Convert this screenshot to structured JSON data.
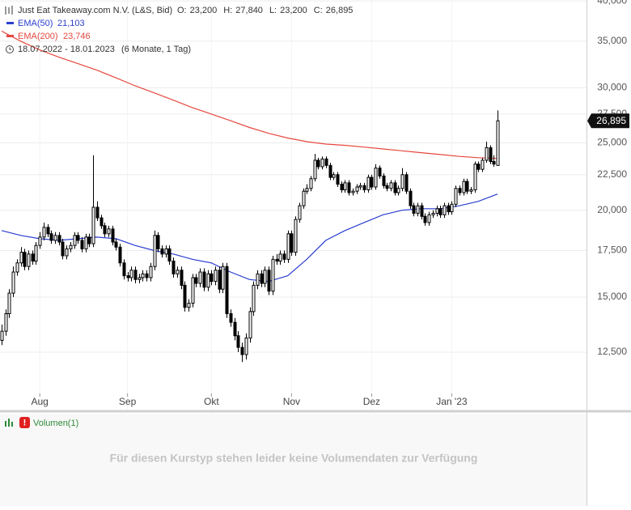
{
  "chart_data": {
    "type": "candlestick",
    "title": "Just Eat Takeaway.com N.V. (L&S, Bid)",
    "ohlc_header": [
      {
        "name": "O:",
        "value": 23200,
        "label": "23,200"
      },
      {
        "name": "H:",
        "value": 27840,
        "label": "27,840"
      },
      {
        "name": "L:",
        "value": 23200,
        "label": "23,200"
      },
      {
        "name": "C:",
        "value": 26895,
        "label": "26,895"
      }
    ],
    "range": "18.07.2022 - 18.01.2023",
    "range_note": "(6 Monate, 1 Tag)",
    "log_scale": true,
    "grid": true,
    "ylim": [
      10280,
      40120
    ],
    "yticks": [
      {
        "value": 12500,
        "label": "12,500"
      },
      {
        "value": 15000,
        "label": "15,000"
      },
      {
        "value": 17500,
        "label": "17,500"
      },
      {
        "value": 20000,
        "label": "20,000"
      },
      {
        "value": 22500,
        "label": "22,500"
      },
      {
        "value": 25000,
        "label": "25,000"
      },
      {
        "value": 27500,
        "label": "27,500"
      },
      {
        "value": 30000,
        "label": "30,000"
      },
      {
        "value": 35000,
        "label": "35,000"
      },
      {
        "value": 40000,
        "label": "40,000"
      }
    ],
    "xticks": [
      {
        "value": 10,
        "label": "Aug"
      },
      {
        "value": 33,
        "label": "Sep"
      },
      {
        "value": 55,
        "label": "Okt"
      },
      {
        "value": 76,
        "label": "Nov"
      },
      {
        "value": 97,
        "label": "Dez"
      },
      {
        "value": 118,
        "label": "Jan '23"
      }
    ],
    "current_price": {
      "value": 26895,
      "label": "26,895"
    },
    "up_color": "#ffffff",
    "down_color": "#000000",
    "candles": [
      [
        13000,
        13700,
        12800,
        13400
      ],
      [
        13400,
        14400,
        13200,
        14200
      ],
      [
        14200,
        15400,
        14000,
        15200
      ],
      [
        15200,
        16600,
        15000,
        16300
      ],
      [
        16300,
        17000,
        16100,
        16800
      ],
      [
        16800,
        17700,
        16600,
        17400
      ],
      [
        17400,
        17600,
        16400,
        16600
      ],
      [
        16600,
        17500,
        16400,
        17300
      ],
      [
        17300,
        17500,
        16700,
        16900
      ],
      [
        16900,
        18000,
        16700,
        17800
      ],
      [
        17800,
        18600,
        17600,
        18300
      ],
      [
        18300,
        19200,
        18100,
        18900
      ],
      [
        18900,
        19100,
        18300,
        18500
      ],
      [
        18500,
        18700,
        17900,
        18100
      ],
      [
        18100,
        18600,
        17900,
        18400
      ],
      [
        18400,
        18600,
        17800,
        18000
      ],
      [
        18000,
        18200,
        17000,
        17200
      ],
      [
        17200,
        17800,
        17000,
        17600
      ],
      [
        17600,
        18000,
        17400,
        17800
      ],
      [
        17800,
        18600,
        17600,
        18400
      ],
      [
        18400,
        18600,
        17900,
        18100
      ],
      [
        18100,
        18300,
        17400,
        17600
      ],
      [
        17600,
        18500,
        17400,
        18300
      ],
      [
        18300,
        18500,
        17700,
        17900
      ],
      [
        17900,
        24000,
        17700,
        20200
      ],
      [
        20200,
        20600,
        19300,
        19500
      ],
      [
        19500,
        19700,
        18800,
        19000
      ],
      [
        19000,
        19200,
        18300,
        18500
      ],
      [
        18500,
        19000,
        18300,
        18800
      ],
      [
        18800,
        19000,
        17800,
        18000
      ],
      [
        18000,
        18200,
        17500,
        17700
      ],
      [
        17700,
        17900,
        16600,
        16800
      ],
      [
        16800,
        17000,
        15900,
        16100
      ],
      [
        16100,
        16300,
        15800,
        16000
      ],
      [
        16000,
        16600,
        15800,
        16400
      ],
      [
        16400,
        16600,
        15700,
        15900
      ],
      [
        15900,
        16200,
        15700,
        16000
      ],
      [
        16000,
        16400,
        15800,
        16200
      ],
      [
        16200,
        16400,
        15800,
        16000
      ],
      [
        16000,
        16800,
        15800,
        16600
      ],
      [
        16600,
        18700,
        16400,
        18400
      ],
      [
        18400,
        18600,
        17400,
        17600
      ],
      [
        17600,
        17800,
        17100,
        17300
      ],
      [
        17300,
        17800,
        17100,
        17600
      ],
      [
        17600,
        17800,
        16700,
        16900
      ],
      [
        16900,
        17100,
        16000,
        16200
      ],
      [
        16200,
        16600,
        16000,
        16400
      ],
      [
        16400,
        16600,
        15400,
        15600
      ],
      [
        15600,
        15800,
        14300,
        14500
      ],
      [
        14500,
        14900,
        14300,
        14700
      ],
      [
        14700,
        16200,
        14500,
        16000
      ],
      [
        16000,
        16200,
        15500,
        15700
      ],
      [
        15700,
        16500,
        15500,
        16300
      ],
      [
        16300,
        16500,
        15300,
        15500
      ],
      [
        15500,
        16400,
        15300,
        16200
      ],
      [
        16200,
        16400,
        15600,
        15800
      ],
      [
        15800,
        16600,
        15600,
        16400
      ],
      [
        16400,
        16600,
        15200,
        15400
      ],
      [
        15400,
        16800,
        15200,
        16600
      ],
      [
        16600,
        16800,
        14000,
        14200
      ],
      [
        14200,
        14400,
        13600,
        13800
      ],
      [
        13800,
        14000,
        13000,
        13200
      ],
      [
        13200,
        13400,
        12500,
        12700
      ],
      [
        12700,
        12900,
        12100,
        12400
      ],
      [
        12400,
        13300,
        12200,
        13100
      ],
      [
        13100,
        14500,
        12900,
        14300
      ],
      [
        14300,
        15800,
        14100,
        15600
      ],
      [
        15600,
        16400,
        15400,
        16200
      ],
      [
        16200,
        16400,
        15500,
        15700
      ],
      [
        15700,
        16600,
        15500,
        16400
      ],
      [
        16400,
        16600,
        15100,
        15300
      ],
      [
        15300,
        17200,
        15100,
        17000
      ],
      [
        17000,
        17300,
        16700,
        16900
      ],
      [
        16900,
        17500,
        16700,
        17300
      ],
      [
        17300,
        17500,
        16800,
        17000
      ],
      [
        17000,
        18700,
        16800,
        18500
      ],
      [
        18500,
        18700,
        17200,
        17400
      ],
      [
        17400,
        19600,
        17200,
        19400
      ],
      [
        19400,
        20500,
        19200,
        20300
      ],
      [
        20300,
        21500,
        20100,
        21300
      ],
      [
        21300,
        21800,
        21100,
        21500
      ],
      [
        21500,
        22400,
        21300,
        22200
      ],
      [
        22200,
        24100,
        22000,
        23600
      ],
      [
        23600,
        23800,
        22900,
        23100
      ],
      [
        23100,
        23900,
        22900,
        23700
      ],
      [
        23700,
        23900,
        23000,
        23200
      ],
      [
        23200,
        23400,
        22100,
        22300
      ],
      [
        22300,
        22700,
        22100,
        22500
      ],
      [
        22500,
        22700,
        21600,
        21800
      ],
      [
        21800,
        22000,
        21200,
        21400
      ],
      [
        21400,
        22100,
        21200,
        21900
      ],
      [
        21900,
        22100,
        21000,
        21200
      ],
      [
        21200,
        21500,
        21000,
        21300
      ],
      [
        21300,
        21800,
        21100,
        21600
      ],
      [
        21600,
        21900,
        21400,
        21700
      ],
      [
        21700,
        21900,
        21200,
        21400
      ],
      [
        21400,
        22500,
        21200,
        22300
      ],
      [
        22300,
        22500,
        21400,
        21600
      ],
      [
        21600,
        23300,
        21400,
        23000
      ],
      [
        23000,
        23200,
        22200,
        22400
      ],
      [
        22400,
        22600,
        21500,
        21700
      ],
      [
        21700,
        21900,
        21300,
        21500
      ],
      [
        21500,
        22100,
        21300,
        21900
      ],
      [
        21900,
        22100,
        21000,
        21200
      ],
      [
        21200,
        21700,
        21000,
        21500
      ],
      [
        21500,
        23000,
        21300,
        22500
      ],
      [
        22500,
        22700,
        21100,
        21300
      ],
      [
        21300,
        21500,
        20100,
        20300
      ],
      [
        20300,
        20500,
        19600,
        19800
      ],
      [
        19800,
        20500,
        19600,
        20300
      ],
      [
        20300,
        20500,
        19400,
        19600
      ],
      [
        19600,
        19800,
        19000,
        19200
      ],
      [
        19200,
        19900,
        19000,
        19700
      ],
      [
        19700,
        20000,
        19500,
        19800
      ],
      [
        19800,
        20300,
        19600,
        20100
      ],
      [
        20100,
        20300,
        19500,
        19700
      ],
      [
        19700,
        20500,
        19500,
        20300
      ],
      [
        20300,
        20500,
        19700,
        19900
      ],
      [
        19900,
        20600,
        19700,
        20400
      ],
      [
        20400,
        21700,
        20200,
        21500
      ],
      [
        21500,
        21700,
        21000,
        21200
      ],
      [
        21200,
        22200,
        21000,
        22000
      ],
      [
        22000,
        22200,
        21100,
        21300
      ],
      [
        21300,
        21600,
        21100,
        21400
      ],
      [
        21400,
        23500,
        21200,
        23300
      ],
      [
        23300,
        23500,
        22700,
        22900
      ],
      [
        22900,
        23800,
        22700,
        23600
      ],
      [
        23600,
        25100,
        23400,
        24600
      ],
      [
        24600,
        24800,
        23300,
        23500
      ],
      [
        23500,
        24000,
        23100,
        23300
      ],
      [
        23200,
        27840,
        23200,
        26895
      ]
    ],
    "series": [
      {
        "name": "EMA(50)",
        "color": "#2b3fcf",
        "value_label": "21,103",
        "x": [
          0,
          5,
          10,
          15,
          20,
          25,
          30,
          35,
          40,
          45,
          50,
          55,
          60,
          65,
          70,
          75,
          80,
          85,
          90,
          95,
          100,
          105,
          110,
          115,
          120,
          125,
          130
        ],
        "values": [
          18700,
          18400,
          18200,
          18100,
          18200,
          18300,
          18200,
          17800,
          17500,
          17300,
          17000,
          16800,
          16300,
          15900,
          15800,
          16100,
          17000,
          18100,
          18700,
          19200,
          19700,
          20000,
          20100,
          20100,
          20300,
          20600,
          21103
        ]
      },
      {
        "name": "EMA(200)",
        "color": "#e5483e",
        "value_label": "23,746",
        "x": [
          0,
          5,
          10,
          15,
          20,
          25,
          30,
          35,
          40,
          45,
          50,
          55,
          60,
          65,
          70,
          75,
          80,
          85,
          90,
          95,
          100,
          105,
          110,
          115,
          120,
          125,
          130
        ],
        "values": [
          36200,
          35000,
          34000,
          33200,
          32500,
          31800,
          31000,
          30200,
          29500,
          28800,
          28100,
          27500,
          26900,
          26300,
          25800,
          25400,
          25100,
          24900,
          24800,
          24650,
          24500,
          24350,
          24200,
          24050,
          23900,
          23800,
          23746
        ]
      }
    ],
    "volume_label": "Volumen(1)",
    "volume_message": "Für diesen Kurstyp stehen leider keine Volumendaten zur Verfügung"
  }
}
